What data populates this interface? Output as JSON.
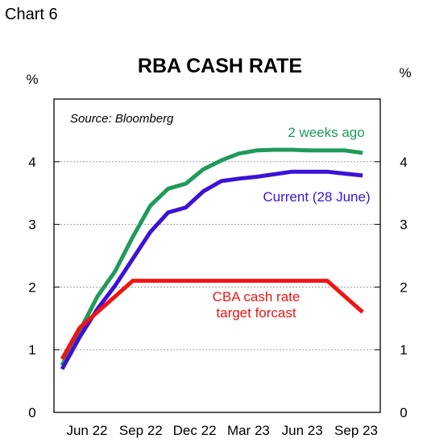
{
  "caption": "Chart 6",
  "chart_data": {
    "type": "line",
    "title": "RBA CASH RATE",
    "left_unit": "%",
    "right_unit": "%",
    "source": "Source: Bloomberg",
    "ylim": [
      0,
      5
    ],
    "yticks": [
      0,
      1,
      2,
      3,
      4
    ],
    "grid": "horizontal-dotted",
    "x_tick_labels": [
      "Jun 22",
      "Sep 22",
      "Dec 22",
      "Mar 23",
      "Jun 23",
      "Sep 23"
    ],
    "x_index_range": [
      0,
      18
    ],
    "series": [
      {
        "name": "2 weeks ago",
        "color": "#1f9a5a",
        "label_lines": [
          "2 weeks ago"
        ],
        "x": [
          0,
          1,
          2,
          3,
          4,
          5,
          6,
          7,
          8,
          9,
          10,
          11,
          12,
          13,
          14,
          15,
          16,
          17
        ],
        "values": [
          0.75,
          1.3,
          1.85,
          2.25,
          2.8,
          3.3,
          3.57,
          3.65,
          3.88,
          4.02,
          4.13,
          4.18,
          4.19,
          4.19,
          4.18,
          4.18,
          4.18,
          4.14
        ]
      },
      {
        "name": "Current (28 June)",
        "color": "#3b12d6",
        "label_lines": [
          "Current (28 June)"
        ],
        "x": [
          0,
          1,
          2,
          3,
          4,
          5,
          6,
          7,
          8,
          9,
          10,
          11,
          12,
          13,
          14,
          15,
          16,
          17
        ],
        "values": [
          0.69,
          1.2,
          1.65,
          2.02,
          2.45,
          2.88,
          3.19,
          3.27,
          3.53,
          3.69,
          3.73,
          3.76,
          3.8,
          3.84,
          3.84,
          3.84,
          3.81,
          3.78
        ]
      },
      {
        "name": "CBA cash rate target forcast",
        "color": "#f01414",
        "label_lines": [
          "CBA cash rate",
          "target forcast"
        ],
        "x": [
          0,
          1,
          2,
          3,
          4,
          5,
          6,
          7,
          8,
          9,
          10,
          11,
          12,
          13,
          14,
          15,
          16,
          17
        ],
        "values": [
          0.85,
          1.35,
          1.6,
          1.85,
          2.1,
          2.1,
          2.1,
          2.1,
          2.1,
          2.1,
          2.1,
          2.1,
          2.1,
          2.1,
          2.1,
          2.1,
          1.85,
          1.6
        ]
      }
    ]
  }
}
